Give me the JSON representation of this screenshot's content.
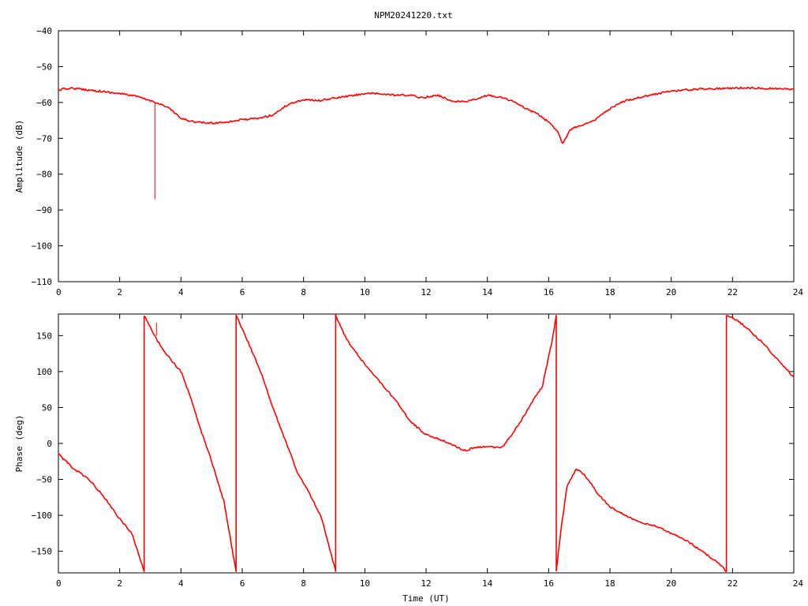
{
  "title": "NPM20241220.txt",
  "colors": {
    "trace": "#ff0000",
    "axis": "#000000",
    "background": "#ffffff"
  },
  "chart_data": [
    {
      "type": "line",
      "title": "NPM20241220.txt",
      "xlabel": "",
      "ylabel": "Amplitude (dB)",
      "xlim": [
        0,
        24
      ],
      "ylim": [
        -110,
        -40
      ],
      "xticks": [
        0,
        2,
        4,
        6,
        8,
        10,
        12,
        14,
        16,
        18,
        20,
        22,
        24
      ],
      "yticks": [
        -110,
        -100,
        -90,
        -80,
        -70,
        -60,
        -50,
        -40
      ],
      "grid": false,
      "legend": "none",
      "series": [
        {
          "x": [
            0,
            0.4,
            1,
            2,
            2.5,
            3,
            3.2,
            3.6,
            4,
            4.5,
            5,
            5.5,
            6,
            6.5,
            7,
            7.5,
            8,
            8.5,
            9,
            9.5,
            10,
            10.5,
            11,
            11.5,
            11.8,
            12,
            12.4,
            12.8,
            13.2,
            13.6,
            14,
            14.4,
            14.8,
            15.2,
            15.6,
            16,
            16.3,
            16.45,
            16.7,
            17,
            17.4,
            18,
            18.5,
            19,
            20,
            21,
            22,
            22.5,
            23,
            23.5,
            24
          ],
          "y": [
            -56.5,
            -56,
            -56.5,
            -57.5,
            -58.2,
            -59.5,
            -60,
            -61.5,
            -64.5,
            -65.5,
            -65.8,
            -65.4,
            -64.8,
            -64.5,
            -63.5,
            -60.5,
            -59.2,
            -59.5,
            -58.8,
            -58.2,
            -57.5,
            -57.6,
            -58,
            -58,
            -58.6,
            -58.5,
            -58,
            -59.5,
            -59.8,
            -59.2,
            -58,
            -58.5,
            -59.5,
            -61.5,
            -63,
            -65.5,
            -68,
            -71.5,
            -67.5,
            -66.5,
            -65.5,
            -61.8,
            -59.5,
            -58.5,
            -56.8,
            -56.2,
            -56,
            -55.9,
            -56,
            -56.2,
            -56.2
          ],
          "spikes": [
            {
              "x": 3.15,
              "y_from": -60,
              "y_to": -87
            }
          ]
        }
      ]
    },
    {
      "type": "line",
      "title": "",
      "xlabel": "Time (UT)",
      "ylabel": "Phase (deg)",
      "xlim": [
        0,
        24
      ],
      "ylim": [
        -180,
        180
      ],
      "xticks": [
        0,
        2,
        4,
        6,
        8,
        10,
        12,
        14,
        16,
        18,
        20,
        22,
        24
      ],
      "yticks": [
        -150,
        -100,
        -50,
        0,
        50,
        100,
        150
      ],
      "grid": false,
      "legend": "none",
      "series": [
        {
          "x": [
            0,
            0.5,
            1,
            1.5,
            2,
            2.4,
            2.8,
            2.8,
            3.2,
            3.6,
            4,
            4.3,
            4.6,
            5,
            5.4,
            5.8,
            5.8,
            6.2,
            6.6,
            7,
            7.4,
            7.8,
            8.2,
            8.6,
            9.05,
            9.05,
            9.4,
            10,
            10.5,
            11,
            11.5,
            12,
            12.5,
            13,
            13.3,
            13.6,
            14,
            14.5,
            15,
            15.5,
            15.8,
            16.1,
            16.25,
            16.25,
            16.4,
            16.6,
            16.9,
            17.2,
            17.6,
            18,
            18.5,
            19,
            19.5,
            20,
            20.5,
            21,
            21.5,
            21.8,
            21.8,
            22.2,
            22.6,
            23,
            23.5,
            24
          ],
          "y": [
            -15,
            -35,
            -50,
            -75,
            -105,
            -125,
            -178,
            178,
            145,
            120,
            100,
            65,
            25,
            -25,
            -80,
            -178,
            178,
            140,
            100,
            50,
            5,
            -40,
            -70,
            -105,
            -178,
            178,
            145,
            110,
            85,
            60,
            30,
            12,
            5,
            -5,
            -10,
            -5,
            -5,
            -5,
            25,
            60,
            80,
            140,
            178,
            -178,
            -120,
            -60,
            -35,
            -45,
            -70,
            -88,
            -100,
            -110,
            -115,
            -125,
            -135,
            -150,
            -165,
            -178,
            178,
            170,
            155,
            140,
            115,
            92
          ],
          "spikes": [
            {
              "x": 3.2,
              "y_from": 150,
              "y_to": 168
            },
            {
              "x": 9.05,
              "y_from": -178,
              "y_to": 0
            }
          ]
        }
      ]
    }
  ]
}
